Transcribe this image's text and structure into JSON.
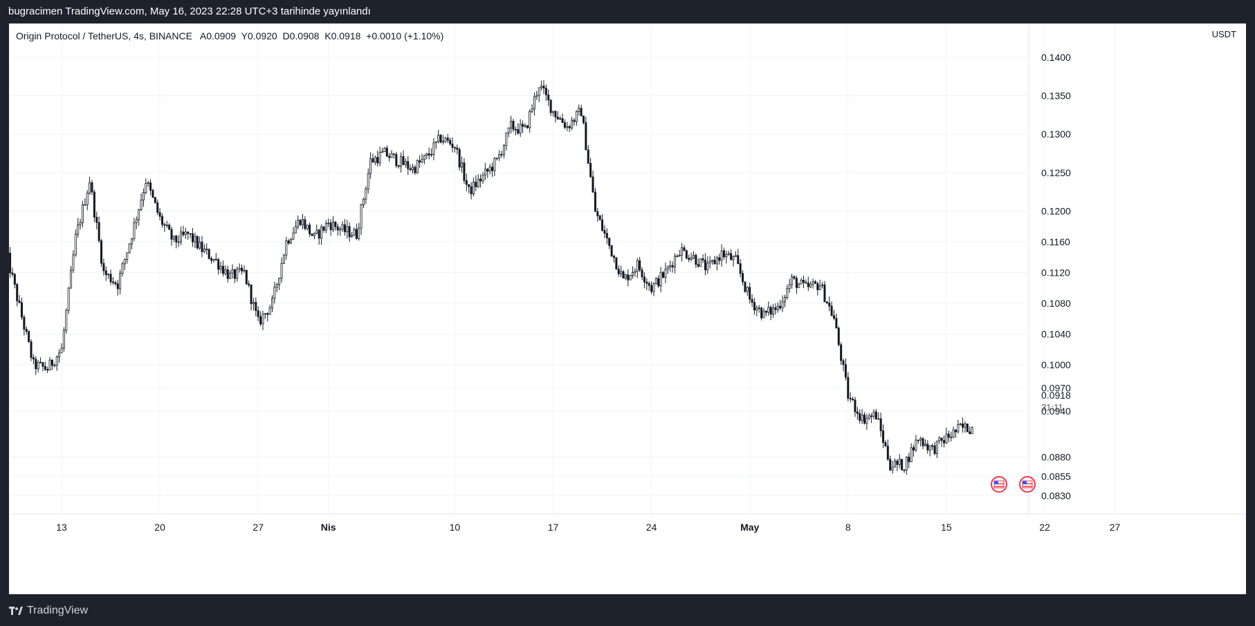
{
  "header": {
    "published": "bugracimen TradingView.com, May 16, 2023 22:28 UTC+3 tarihinde yayınlandı"
  },
  "legend": {
    "symbol": "Origin Protocol / TetherUS, 4s, BINANCE",
    "open": "A0.0909",
    "high": "Y0.0920",
    "low": "D0.0908",
    "close": "K0.0918",
    "change": "+0.0010 (+1.10%)"
  },
  "currency": "USDT",
  "footer": {
    "brand": "TradingView",
    "logo_icon": "tradingview-logo-icon"
  },
  "colors": {
    "background": "#1e222d",
    "chart_bg": "#ffffff",
    "candle": "#131722",
    "grid": "#f0f3fa",
    "event_icon": "#f23645"
  },
  "price_scale": {
    "labels": [
      "0.1400",
      "0.1350",
      "0.1300",
      "0.1250",
      "0.1200",
      "0.1160",
      "0.1120",
      "0.1080",
      "0.1040",
      "0.1000",
      "0.0970",
      "0.0940",
      "0.0880",
      "0.0855",
      "0.0830"
    ],
    "current_price": "0.0918",
    "countdown": "31:11"
  },
  "time_scale": {
    "labels": [
      "13",
      "20",
      "27",
      "Nis",
      "10",
      "17",
      "24",
      "May",
      "8",
      "15",
      "22",
      "27"
    ],
    "bold": [
      "Nis",
      "May"
    ]
  },
  "events": [
    {
      "icon": "us-flag-icon"
    },
    {
      "icon": "us-flag-icon"
    }
  ],
  "chart_data": {
    "type": "candlestick",
    "title": "Origin Protocol / TetherUS, 4s, BINANCE",
    "xlabel": "",
    "ylabel": "",
    "ylim": [
      0.0815,
      0.1435
    ],
    "grid": true,
    "x_ticks": [
      "13",
      "20",
      "27",
      "Nis",
      "10",
      "17",
      "24",
      "May",
      "8",
      "15",
      "22",
      "27"
    ],
    "anchors": {
      "x": [
        "Mar 09",
        "Mar 11",
        "Mar 12",
        "Mar 13",
        "Mar 14",
        "Mar 15",
        "Mar 16",
        "Mar 17",
        "Mar 18",
        "Mar 19",
        "Mar 20",
        "Mar 21",
        "Mar 22",
        "Mar 23",
        "Mar 24",
        "Mar 25",
        "Mar 26",
        "Mar 27",
        "Mar 28",
        "Mar 29",
        "Mar 30",
        "Mar 31",
        "Apr 01",
        "Apr 02",
        "Apr 03",
        "Apr 04",
        "Apr 05",
        "Apr 06",
        "Apr 07",
        "Apr 08",
        "Apr 09",
        "Apr 10",
        "Apr 11",
        "Apr 12",
        "Apr 13",
        "Apr 14",
        "Apr 15",
        "Apr 16",
        "Apr 17",
        "Apr 18",
        "Apr 19",
        "Apr 20",
        "Apr 21",
        "Apr 22",
        "Apr 23",
        "Apr 24",
        "Apr 25",
        "Apr 26",
        "Apr 27",
        "Apr 28",
        "Apr 29",
        "Apr 30",
        "May 01",
        "May 02",
        "May 03",
        "May 04",
        "May 05",
        "May 06",
        "May 07",
        "May 08",
        "May 09",
        "May 10",
        "May 11",
        "May 12",
        "May 13",
        "May 14",
        "May 15",
        "May 16"
      ],
      "close": [
        0.115,
        0.1,
        0.0995,
        0.102,
        0.1165,
        0.124,
        0.112,
        0.1105,
        0.117,
        0.124,
        0.119,
        0.116,
        0.117,
        0.115,
        0.1135,
        0.1115,
        0.112,
        0.1055,
        0.108,
        0.116,
        0.119,
        0.1165,
        0.1185,
        0.1175,
        0.117,
        0.1265,
        0.1275,
        0.1265,
        0.1255,
        0.127,
        0.1295,
        0.1285,
        0.1225,
        0.1245,
        0.1265,
        0.131,
        0.1305,
        0.1365,
        0.133,
        0.131,
        0.133,
        0.12,
        0.1155,
        0.111,
        0.113,
        0.11,
        0.112,
        0.115,
        0.114,
        0.1125,
        0.1145,
        0.1135,
        0.1085,
        0.1065,
        0.1075,
        0.111,
        0.11,
        0.1105,
        0.106,
        0.096,
        0.093,
        0.0935,
        0.087,
        0.087,
        0.0905,
        0.089,
        0.0905,
        0.0918
      ]
    }
  }
}
